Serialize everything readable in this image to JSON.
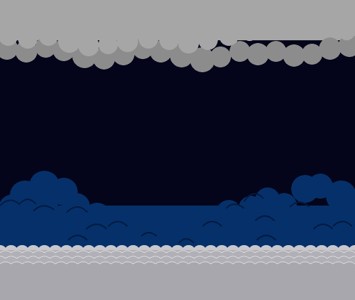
{
  "scene": {
    "type": "pixel-art game background",
    "elements": [
      "night-sky",
      "gray-cloud-ceiling",
      "blue-bushes",
      "gray-wave-ground"
    ]
  },
  "colors": {
    "sky": "#04051a",
    "cloud_dark": "#8c8c8c",
    "cloud_light": "#a6a6a6",
    "bush_fill": "#06306a",
    "bush_outline": "#021a40",
    "ground_top": "#c8c8cc",
    "ground_mid": "#b0b0b6",
    "ground_body": "#a7a7ad",
    "ground_line": "#d8d8dc"
  }
}
